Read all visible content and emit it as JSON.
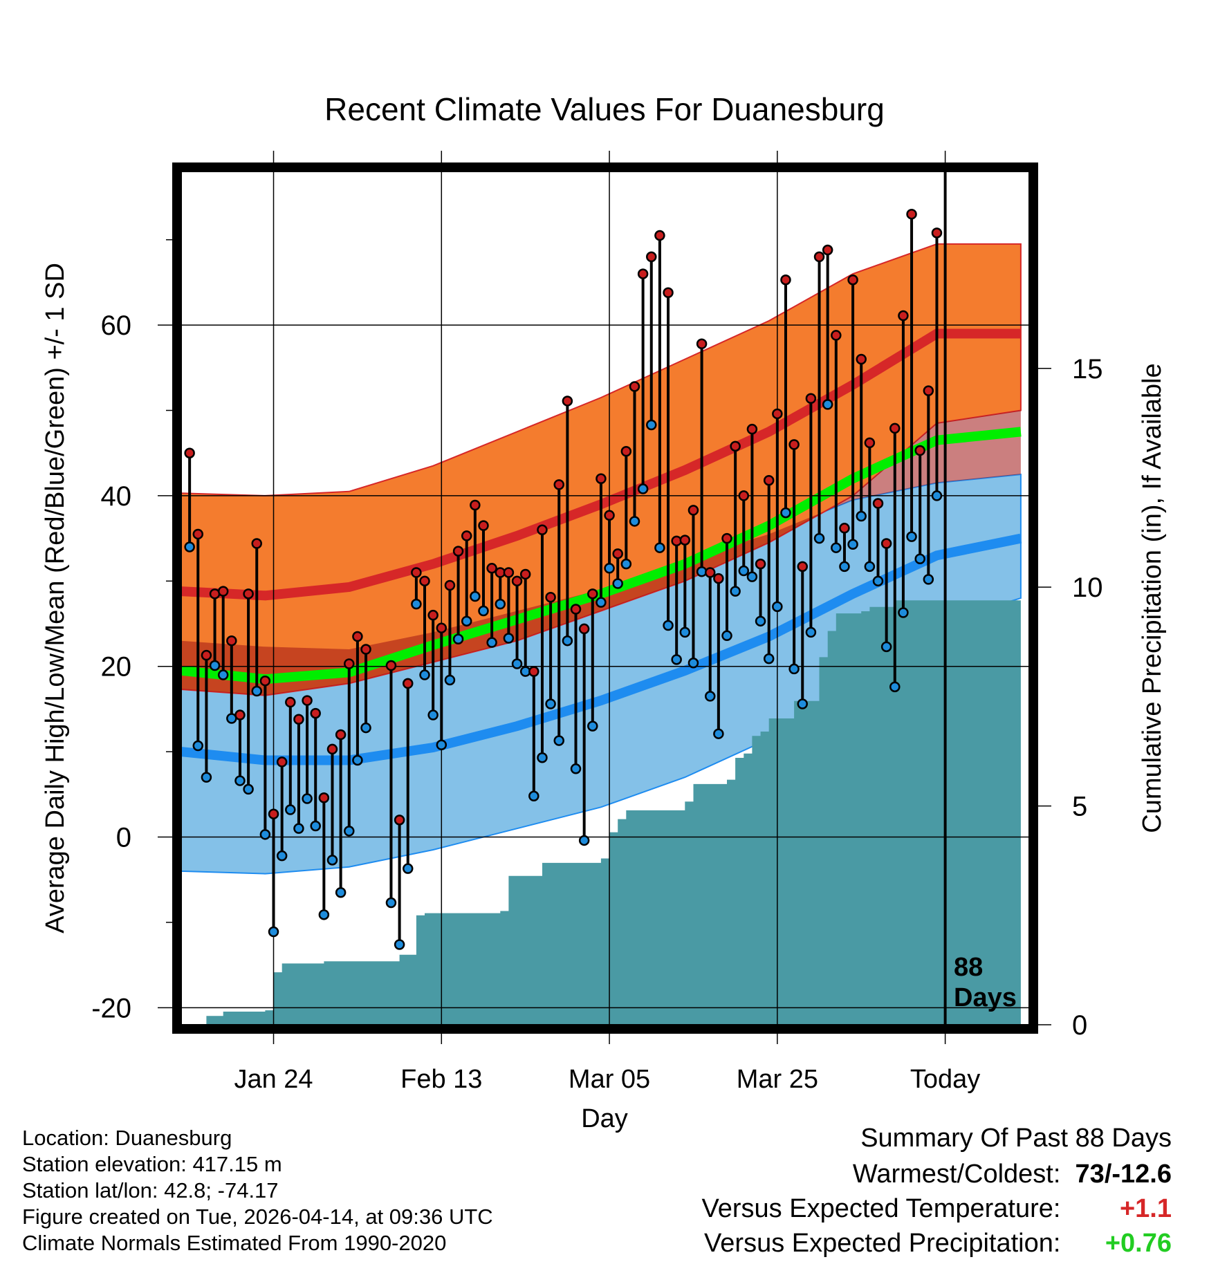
{
  "chart_data": {
    "type": "line",
    "title": "Recent Climate Values For Duanesburg",
    "xlabel": "Day",
    "ylabel": "Average Daily High/Low/Mean (Red/Blue/Green) +/- 1 SD",
    "y2label": "Cumulative Precipitation (in), If Available",
    "x_ticks": [
      {
        "day": 10,
        "label": "Jan 24"
      },
      {
        "day": 30,
        "label": "Feb 13"
      },
      {
        "day": 50,
        "label": "Mar 05"
      },
      {
        "day": 70,
        "label": "Mar 25"
      },
      {
        "day": 90,
        "label": "Today"
      }
    ],
    "xlim": [
      -1,
      100
    ],
    "ylim": [
      -22,
      78
    ],
    "y_ticks": [
      -20,
      0,
      20,
      40,
      60
    ],
    "y2lim": [
      0,
      19.5
    ],
    "y2_ticks": [
      0,
      5,
      10,
      15
    ],
    "today_day": 90,
    "today_label": "88 Days",
    "normals_days": [
      -1,
      9,
      19,
      29,
      39,
      49,
      59,
      69,
      79,
      89,
      99
    ],
    "normal_high_mean": [
      28.8,
      28.3,
      29.3,
      32.0,
      35.3,
      39.0,
      43.0,
      47.5,
      53.0,
      59.0,
      59.0
    ],
    "normal_high_sd_upper": [
      40.3,
      40.0,
      40.5,
      43.5,
      47.5,
      51.5,
      56.0,
      60.5,
      66.0,
      69.5,
      69.5
    ],
    "normal_high_sd_lower": [
      17.3,
      16.6,
      18.0,
      20.5,
      23.0,
      26.5,
      30.0,
      34.5,
      40.0,
      48.5,
      50.0
    ],
    "normal_mean": [
      19.5,
      18.5,
      19.3,
      22.5,
      25.5,
      28.5,
      32.0,
      36.5,
      42.0,
      46.5,
      47.5
    ],
    "normal_low_mean": [
      10.0,
      9.0,
      9.0,
      10.5,
      13.0,
      16.0,
      19.5,
      23.5,
      28.5,
      33.0,
      35.0
    ],
    "normal_low_sd_upper": [
      23.0,
      22.3,
      22.0,
      24.0,
      26.5,
      29.0,
      32.5,
      35.5,
      39.5,
      41.5,
      42.5
    ],
    "normal_low_sd_lower": [
      -4.0,
      -4.3,
      -3.5,
      -1.5,
      1.0,
      3.5,
      7.0,
      11.5,
      17.5,
      25.0,
      28.0
    ],
    "highs": [
      45,
      35.5,
      21.3,
      28.5,
      28.8,
      23,
      14.3,
      28.5,
      34.4,
      18.3,
      2.7,
      8.8,
      15.8,
      13.8,
      16,
      14.5,
      4.6,
      10.3,
      12,
      20.3,
      23.5,
      22,
      null,
      null,
      20.1,
      2,
      18,
      31,
      30,
      26,
      24.5,
      29.5,
      33.5,
      35.3,
      38.9,
      36.5,
      31.5,
      31,
      31,
      30,
      30.8,
      19.4,
      36,
      28.1,
      41.3,
      51.1,
      26.7,
      24.4,
      28.5,
      42,
      37.7,
      33.2,
      45.2,
      52.8,
      66,
      68,
      70.5,
      63.8,
      34.7,
      34.8,
      38.3,
      57.8,
      31,
      30.3,
      35,
      45.8,
      40,
      47.8,
      32,
      41.8,
      49.6,
      65.3,
      46,
      31.7,
      51.4,
      68,
      68.8,
      58.8,
      36.2,
      65.3,
      56,
      46.2,
      39.1,
      34.4,
      47.9,
      61.1,
      73,
      45.3,
      52.3,
      70.8
    ],
    "lows": [
      34,
      10.7,
      7,
      20.1,
      19,
      13.9,
      6.6,
      5.6,
      17.1,
      0.3,
      -11.1,
      -2.2,
      3.2,
      1,
      4.5,
      1.3,
      -9.1,
      -2.7,
      -6.5,
      0.7,
      9,
      12.8,
      null,
      null,
      -7.7,
      -12.6,
      -3.7,
      27.3,
      19,
      14.3,
      10.8,
      18.4,
      23.2,
      25.3,
      28.2,
      26.5,
      22.8,
      27.3,
      23.3,
      20.3,
      19.4,
      4.8,
      9.3,
      15.6,
      11.3,
      23,
      8,
      -0.4,
      13,
      27.5,
      31.5,
      29.7,
      32,
      37,
      40.8,
      48.3,
      33.9,
      24.8,
      20.8,
      24,
      20.4,
      31.1,
      16.5,
      12.1,
      23.6,
      28.8,
      31.2,
      30.5,
      25.3,
      20.9,
      27,
      38,
      19.7,
      15.6,
      24,
      35,
      50.7,
      33.9,
      31.7,
      34.3,
      37.6,
      31.7,
      30,
      22.3,
      17.6,
      26.3,
      35.2,
      32.6,
      30.2,
      40
    ],
    "precip_days": [
      -1,
      2,
      4,
      9,
      10,
      11,
      16,
      25,
      27,
      28,
      37,
      38,
      42,
      49,
      50,
      51,
      52,
      59,
      60,
      64,
      65,
      66,
      67,
      68,
      69,
      72,
      75,
      76,
      77,
      80,
      81,
      84,
      99
    ],
    "precip_cum": [
      0,
      0.2,
      0.3,
      0.33,
      1.2,
      1.4,
      1.45,
      1.6,
      2.5,
      2.55,
      2.6,
      3.4,
      3.7,
      3.8,
      4.4,
      4.7,
      4.9,
      5.1,
      5.5,
      5.6,
      6.1,
      6.2,
      6.6,
      6.7,
      7.0,
      7.4,
      8.4,
      9.0,
      9.4,
      9.45,
      9.55,
      9.7,
      9.7
    ],
    "colors": {
      "high_band": "#f47c2e",
      "high_mean": "#d62728",
      "low_band": "#84c1e8",
      "low_mean": "#1e8cf0",
      "mean_line": "#00ee00",
      "overlap": "#a01616",
      "precip": "#4a9aa4",
      "high_marker": "#c81e1e",
      "low_marker": "#1e8cdc"
    }
  },
  "info": {
    "location": "Location: Duanesburg",
    "elevation": "Station elevation: 417.15 m",
    "latlon": "Station lat/lon: 42.8; -74.17",
    "created": "Figure created on Tue, 2026-04-14, at 09:36 UTC",
    "normals": "Climate Normals Estimated From 1990-2020"
  },
  "summary": {
    "title": "Summary Of Past 88 Days",
    "warmest_label": "Warmest/Coldest:",
    "warmest_value": "73/-12.6",
    "temp_label": "Versus Expected Temperature:",
    "temp_value": "+1.1",
    "temp_color": "#d62728",
    "precip_label": "Versus Expected Precipitation:",
    "precip_value": "+0.76",
    "precip_color": "#22cc22"
  }
}
